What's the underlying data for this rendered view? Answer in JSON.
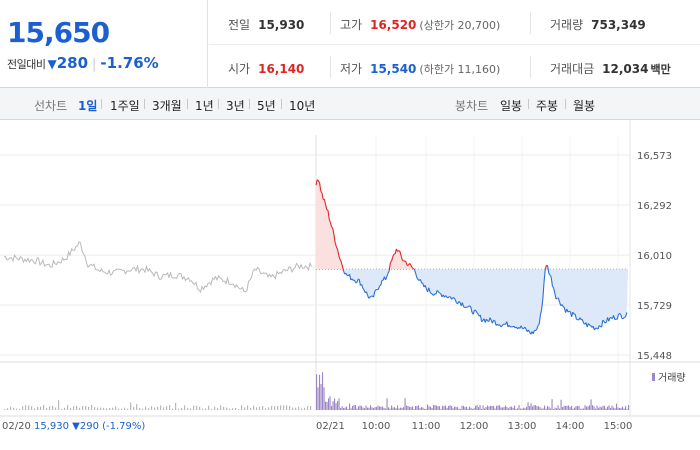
{
  "quote": {
    "price": "15,650",
    "change_label": "전일대비",
    "change_icon": "down-triangle-icon",
    "change_amount": "280",
    "change_pct": "-1.76%"
  },
  "stats": {
    "prev_close": {
      "label": "전일",
      "value": "15,930"
    },
    "high": {
      "label": "고가",
      "value": "16,520",
      "sub": "(상한가 20,700)"
    },
    "volume": {
      "label": "거래량",
      "value": "753,349"
    },
    "open": {
      "label": "시가",
      "value": "16,140"
    },
    "low": {
      "label": "저가",
      "value": "15,540",
      "sub": "(하한가 11,160)"
    },
    "amount": {
      "label": "거래대금",
      "value": "12,034",
      "unit": "백만"
    }
  },
  "toolbar": {
    "line_label": "선차트",
    "line_periods": [
      "1일",
      "1주일",
      "3개월",
      "1년",
      "3년",
      "5년",
      "10년"
    ],
    "active_period": "1일",
    "candle_label": "봉차트",
    "candle_periods": [
      "일봉",
      "주봉",
      "월봉"
    ]
  },
  "chart_data": {
    "type": "line",
    "y_ticks": [
      "16,573",
      "16,292",
      "16,010",
      "15,729",
      "15,448"
    ],
    "ylim": [
      15448,
      16573
    ],
    "prev_close_value": 15930,
    "prev_day_label": "02/20",
    "prev_day_summary": "15,930 ▼290 (-1.79%)",
    "today_label": "02/21",
    "time_labels": [
      "10:00",
      "11:00",
      "12:00",
      "13:00",
      "14:00",
      "15:00"
    ],
    "volume_legend": "거래량",
    "colors": {
      "prev_day": "#b9b9b9",
      "up": "#e02424",
      "down": "#2a6fd6",
      "up_fill": "#fbe0e0",
      "down_fill": "#dde9f8",
      "volume": "#9b86c6"
    }
  }
}
